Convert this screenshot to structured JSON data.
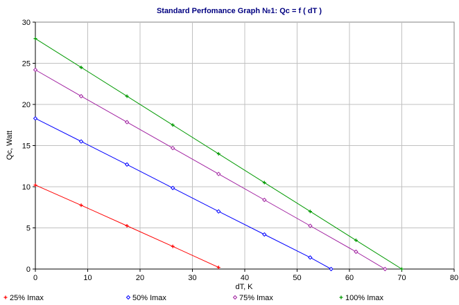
{
  "chart_data": {
    "type": "line",
    "title": "Standard Perfomance Graph №1: Qc = f ( dT )",
    "xlabel": "dT, K",
    "ylabel": "Qc, Watt",
    "xlim": [
      0,
      80
    ],
    "ylim": [
      0,
      30
    ],
    "xticks": [
      "0",
      "10",
      "20",
      "30",
      "40",
      "50",
      "60",
      "70",
      "80"
    ],
    "yticks": [
      "0",
      "5",
      "10",
      "15",
      "20",
      "25",
      "30"
    ],
    "grid": true,
    "legend_position": "bottom",
    "series": [
      {
        "name": "25% Imax",
        "color": "#ff0000",
        "marker": "plus",
        "x": [
          0,
          8.75,
          17.5,
          26.25,
          35
        ],
        "y": [
          10.2,
          7.75,
          5.25,
          2.75,
          0.2
        ]
      },
      {
        "name": "50% Imax",
        "color": "#0000ff",
        "marker": "diamond",
        "x": [
          0,
          8.75,
          17.5,
          26.25,
          35,
          43.75,
          52.5,
          56.5
        ],
        "y": [
          18.3,
          15.5,
          12.7,
          9.85,
          7.0,
          4.2,
          1.4,
          0
        ]
      },
      {
        "name": "75% Imax",
        "color": "#a020a0",
        "marker": "diamond",
        "x": [
          0,
          8.75,
          17.5,
          26.25,
          35,
          43.75,
          52.5,
          61.25,
          66.8
        ],
        "y": [
          24.2,
          21.0,
          17.85,
          14.7,
          11.55,
          8.4,
          5.25,
          2.1,
          0
        ]
      },
      {
        "name": "100% Imax",
        "color": "#009900",
        "marker": "plus",
        "x": [
          0,
          8.75,
          17.5,
          26.25,
          35,
          43.75,
          52.5,
          61.25,
          70
        ],
        "y": [
          28.0,
          24.5,
          21.0,
          17.5,
          14.0,
          10.5,
          7.0,
          3.5,
          0
        ]
      }
    ]
  }
}
